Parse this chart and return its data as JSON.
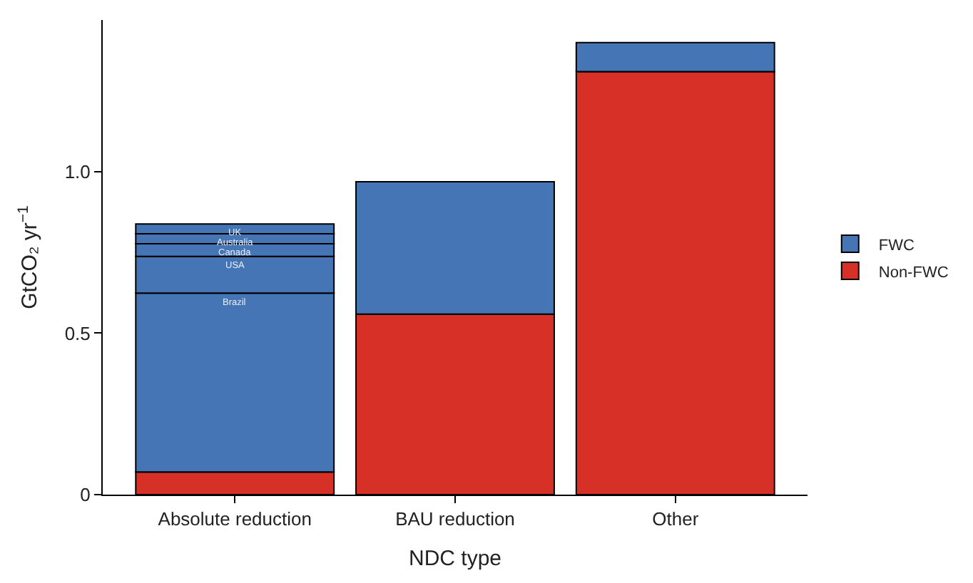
{
  "chart_data": {
    "type": "bar",
    "stacked": true,
    "xlabel": "NDC type",
    "ylabel": "GtCO₂ yr$^{−1}$",
    "categories": [
      "Absolute reduction",
      "BAU reduction",
      "Other"
    ],
    "series": [
      {
        "name": "Non-FWC",
        "color": "#d73027",
        "values": [
          0.07,
          0.559,
          1.31
        ]
      },
      {
        "name": "Brazil",
        "color": "#4575b4",
        "values": [
          0.554,
          null,
          null
        ]
      },
      {
        "name": "USA",
        "color": "#4575b4",
        "values": [
          0.114,
          null,
          null
        ]
      },
      {
        "name": "Canada",
        "color": "#4575b4",
        "values": [
          0.039,
          null,
          null
        ]
      },
      {
        "name": "Australia",
        "color": "#4575b4",
        "values": [
          0.031,
          null,
          null
        ]
      },
      {
        "name": "UK",
        "color": "#4575b4",
        "values": [
          0.03,
          null,
          null
        ]
      },
      {
        "name": "FWC",
        "color": "#4575b4",
        "values": [
          null,
          0.41,
          0.09
        ]
      }
    ],
    "ylim": [
      0,
      1.47
    ],
    "yticks": [
      0,
      {
        "value": 0.5,
        "label": "0.5"
      },
      {
        "value": 1,
        "label": "1.0"
      }
    ],
    "legend": "right"
  }
}
